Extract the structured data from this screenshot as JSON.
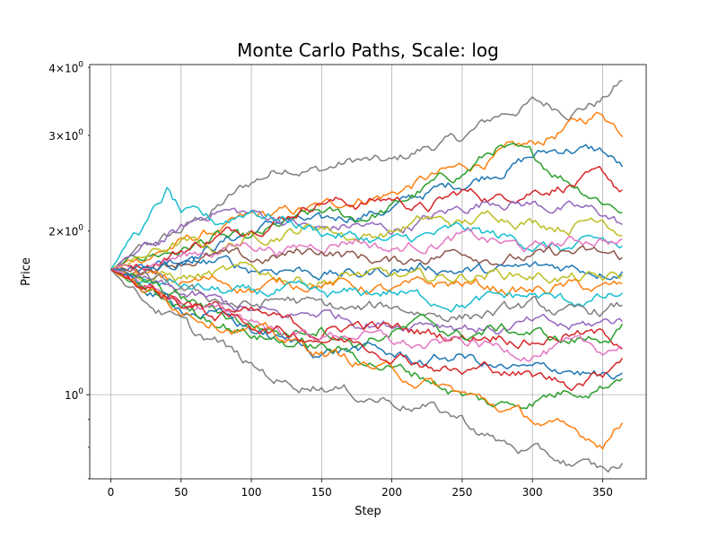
{
  "chart_data": {
    "type": "line",
    "title": "Monte Carlo Paths, Scale: log",
    "xlabel": "Step",
    "ylabel": "Price",
    "yscale": "log",
    "grid": true,
    "xlim": [
      -15,
      381
    ],
    "ylim": [
      0.7,
      4.05
    ],
    "x_ticks": [
      0,
      50,
      100,
      150,
      200,
      250,
      300,
      350
    ],
    "x_tick_labels": [
      "0",
      "50",
      "100",
      "150",
      "200",
      "250",
      "300",
      "350"
    ],
    "y_major_ticks": [
      1
    ],
    "y_major_tick_labels": [
      "10^0"
    ],
    "y_minor_ticks": [
      0.7,
      0.8,
      0.9,
      2,
      3,
      4
    ],
    "y_minor_tick_labels": [
      "",
      "",
      "",
      "2×10^0",
      "3×10^0",
      "4×10^0"
    ],
    "start_value": 1.7,
    "n_steps": 365,
    "palette": [
      "#1f77b4",
      "#ff7f0e",
      "#2ca02c",
      "#d62728",
      "#9467bd",
      "#8c564b",
      "#e377c2",
      "#7f7f7f",
      "#bcbd22",
      "#17becf"
    ],
    "series": [
      {
        "color": "#7f7f7f",
        "x": [
          0,
          25,
          50,
          75,
          100,
          125,
          150,
          175,
          200,
          225,
          250,
          275,
          300,
          325,
          350,
          365
        ],
        "values": [
          1.7,
          1.85,
          2.0,
          2.2,
          2.45,
          2.65,
          2.6,
          2.7,
          2.65,
          2.85,
          2.95,
          3.25,
          3.45,
          3.35,
          3.5,
          3.8
        ]
      },
      {
        "color": "#ff7f0e",
        "x": [
          0,
          25,
          50,
          75,
          100,
          125,
          150,
          175,
          200,
          225,
          250,
          275,
          300,
          325,
          350,
          365
        ],
        "values": [
          1.7,
          1.8,
          1.9,
          2.0,
          2.1,
          2.15,
          2.2,
          2.3,
          2.35,
          2.5,
          2.6,
          2.75,
          2.85,
          3.1,
          3.3,
          3.05
        ]
      },
      {
        "color": "#1f77b4",
        "x": [
          0,
          25,
          50,
          75,
          100,
          125,
          150,
          175,
          200,
          225,
          250,
          275,
          300,
          325,
          350,
          365
        ],
        "values": [
          1.7,
          1.75,
          1.8,
          1.9,
          2.0,
          2.1,
          2.05,
          2.15,
          2.2,
          2.35,
          2.45,
          2.6,
          2.75,
          2.85,
          2.8,
          2.6
        ]
      },
      {
        "color": "#2ca02c",
        "x": [
          0,
          25,
          50,
          75,
          100,
          125,
          150,
          175,
          200,
          225,
          250,
          275,
          300,
          325,
          350,
          365
        ],
        "values": [
          1.7,
          1.8,
          1.85,
          1.95,
          1.9,
          2.05,
          2.15,
          2.1,
          2.2,
          2.4,
          2.55,
          2.85,
          2.7,
          2.5,
          2.3,
          2.2
        ]
      },
      {
        "color": "#d62728",
        "x": [
          0,
          25,
          50,
          75,
          100,
          125,
          150,
          175,
          200,
          225,
          250,
          275,
          300,
          325,
          350,
          365
        ],
        "values": [
          1.7,
          1.75,
          1.85,
          1.95,
          2.05,
          2.15,
          2.3,
          2.25,
          2.3,
          2.2,
          2.35,
          2.3,
          2.4,
          2.45,
          2.5,
          2.35
        ]
      },
      {
        "color": "#9467bd",
        "x": [
          0,
          25,
          50,
          75,
          100,
          125,
          150,
          175,
          200,
          225,
          250,
          275,
          300,
          325,
          350,
          365
        ],
        "values": [
          1.7,
          1.85,
          2.0,
          2.2,
          2.15,
          2.1,
          2.0,
          2.05,
          2.0,
          2.1,
          2.2,
          2.3,
          2.25,
          2.2,
          2.15,
          2.05
        ]
      },
      {
        "color": "#bcbd22",
        "x": [
          0,
          25,
          50,
          75,
          100,
          125,
          150,
          175,
          200,
          225,
          250,
          275,
          300,
          325,
          350,
          365
        ],
        "values": [
          1.7,
          1.8,
          1.9,
          1.85,
          1.95,
          2.0,
          2.05,
          1.95,
          2.0,
          2.1,
          2.05,
          2.15,
          2.1,
          2.05,
          2.15,
          2.0
        ]
      },
      {
        "color": "#17becf",
        "x": [
          0,
          15,
          25,
          40,
          50,
          75,
          100,
          125,
          150,
          175,
          200,
          225,
          250,
          275,
          300,
          325,
          350,
          365
        ],
        "values": [
          1.7,
          1.95,
          2.05,
          2.35,
          2.15,
          2.05,
          2.2,
          2.1,
          2.0,
          1.95,
          1.9,
          1.95,
          2.0,
          1.95,
          1.9,
          1.85,
          1.9,
          1.85
        ]
      },
      {
        "color": "#e377c2",
        "x": [
          0,
          25,
          50,
          75,
          100,
          125,
          150,
          175,
          200,
          225,
          250,
          275,
          300,
          325,
          350,
          365
        ],
        "values": [
          1.7,
          1.75,
          1.8,
          1.85,
          1.9,
          1.85,
          1.9,
          1.95,
          1.85,
          1.9,
          1.95,
          1.9,
          1.85,
          1.9,
          1.95,
          1.9
        ]
      },
      {
        "color": "#8c564b",
        "x": [
          0,
          25,
          50,
          75,
          100,
          125,
          150,
          175,
          200,
          225,
          250,
          275,
          300,
          325,
          350,
          365
        ],
        "values": [
          1.7,
          1.72,
          1.78,
          1.8,
          1.75,
          1.8,
          1.85,
          1.8,
          1.75,
          1.8,
          1.85,
          1.8,
          1.78,
          1.82,
          1.8,
          1.78
        ]
      },
      {
        "color": "#1f77b4",
        "x": [
          0,
          25,
          50,
          75,
          100,
          125,
          150,
          175,
          200,
          225,
          250,
          275,
          300,
          325,
          350,
          365
        ],
        "values": [
          1.7,
          1.68,
          1.72,
          1.75,
          1.7,
          1.72,
          1.68,
          1.66,
          1.7,
          1.72,
          1.7,
          1.68,
          1.7,
          1.72,
          1.7,
          1.72
        ]
      },
      {
        "color": "#bcbd22",
        "x": [
          0,
          25,
          50,
          75,
          100,
          125,
          150,
          175,
          200,
          225,
          250,
          275,
          300,
          325,
          350,
          365
        ],
        "values": [
          1.7,
          1.66,
          1.64,
          1.66,
          1.68,
          1.65,
          1.63,
          1.66,
          1.64,
          1.62,
          1.65,
          1.68,
          1.66,
          1.64,
          1.62,
          1.64
        ]
      },
      {
        "color": "#ff7f0e",
        "x": [
          0,
          25,
          50,
          75,
          100,
          125,
          150,
          175,
          200,
          225,
          250,
          275,
          300,
          325,
          350,
          365
        ],
        "values": [
          1.7,
          1.65,
          1.6,
          1.62,
          1.58,
          1.6,
          1.62,
          1.58,
          1.55,
          1.58,
          1.6,
          1.57,
          1.55,
          1.58,
          1.56,
          1.58
        ]
      },
      {
        "color": "#17becf",
        "x": [
          0,
          25,
          50,
          75,
          100,
          125,
          150,
          175,
          200,
          225,
          250,
          275,
          300,
          325,
          350,
          365
        ],
        "values": [
          1.7,
          1.62,
          1.58,
          1.55,
          1.52,
          1.55,
          1.5,
          1.52,
          1.55,
          1.5,
          1.48,
          1.5,
          1.52,
          1.48,
          1.5,
          1.52
        ]
      },
      {
        "color": "#7f7f7f",
        "x": [
          0,
          25,
          50,
          75,
          100,
          125,
          150,
          175,
          200,
          225,
          250,
          275,
          300,
          325,
          350,
          365
        ],
        "values": [
          1.7,
          1.62,
          1.55,
          1.5,
          1.45,
          1.5,
          1.45,
          1.42,
          1.45,
          1.42,
          1.4,
          1.42,
          1.45,
          1.4,
          1.42,
          1.45
        ]
      },
      {
        "color": "#9467bd",
        "x": [
          0,
          25,
          50,
          75,
          100,
          125,
          150,
          175,
          200,
          225,
          250,
          275,
          300,
          325,
          350,
          365
        ],
        "values": [
          1.7,
          1.6,
          1.52,
          1.48,
          1.42,
          1.38,
          1.42,
          1.38,
          1.35,
          1.38,
          1.35,
          1.32,
          1.35,
          1.32,
          1.35,
          1.38
        ]
      },
      {
        "color": "#d62728",
        "x": [
          0,
          25,
          50,
          75,
          100,
          125,
          150,
          175,
          200,
          225,
          250,
          275,
          300,
          325,
          350,
          365
        ],
        "values": [
          1.7,
          1.6,
          1.5,
          1.45,
          1.4,
          1.35,
          1.3,
          1.35,
          1.32,
          1.3,
          1.28,
          1.3,
          1.26,
          1.3,
          1.28,
          1.25
        ]
      },
      {
        "color": "#2ca02c",
        "x": [
          0,
          25,
          50,
          75,
          100,
          125,
          150,
          175,
          200,
          225,
          250,
          275,
          300,
          325,
          350,
          365
        ],
        "values": [
          1.7,
          1.58,
          1.5,
          1.42,
          1.35,
          1.3,
          1.35,
          1.25,
          1.3,
          1.35,
          1.28,
          1.32,
          1.3,
          1.25,
          1.28,
          1.32
        ]
      },
      {
        "color": "#e377c2",
        "x": [
          0,
          25,
          50,
          75,
          100,
          125,
          150,
          175,
          200,
          225,
          250,
          275,
          300,
          325,
          350,
          365
        ],
        "values": [
          1.7,
          1.58,
          1.48,
          1.42,
          1.38,
          1.3,
          1.28,
          1.3,
          1.25,
          1.22,
          1.25,
          1.22,
          1.2,
          1.22,
          1.2,
          1.24
        ]
      },
      {
        "color": "#1f77b4",
        "x": [
          0,
          25,
          50,
          75,
          100,
          125,
          150,
          175,
          200,
          225,
          250,
          275,
          300,
          325,
          350,
          365
        ],
        "values": [
          1.7,
          1.55,
          1.45,
          1.4,
          1.32,
          1.25,
          1.2,
          1.22,
          1.18,
          1.15,
          1.18,
          1.12,
          1.1,
          1.12,
          1.08,
          1.05
        ]
      },
      {
        "color": "#2ca02c",
        "x": [
          0,
          25,
          50,
          75,
          100,
          125,
          150,
          175,
          200,
          225,
          250,
          275,
          300,
          325,
          350,
          365
        ],
        "values": [
          1.7,
          1.55,
          1.45,
          1.38,
          1.3,
          1.25,
          1.22,
          1.18,
          1.12,
          1.08,
          1.0,
          0.95,
          0.98,
          1.02,
          1.05,
          1.1
        ]
      },
      {
        "color": "#ff7f0e",
        "x": [
          0,
          25,
          50,
          75,
          100,
          125,
          150,
          175,
          200,
          225,
          250,
          275,
          300,
          325,
          350,
          365
        ],
        "values": [
          1.7,
          1.55,
          1.45,
          1.38,
          1.32,
          1.25,
          1.2,
          1.15,
          1.1,
          1.05,
          1.0,
          0.95,
          0.9,
          0.85,
          0.82,
          0.9
        ]
      },
      {
        "color": "#7f7f7f",
        "x": [
          0,
          25,
          50,
          60,
          75,
          100,
          125,
          150,
          175,
          200,
          225,
          250,
          275,
          300,
          325,
          350,
          365
        ],
        "values": [
          1.7,
          1.5,
          1.35,
          1.28,
          1.25,
          1.12,
          1.05,
          1.05,
          1.0,
          0.98,
          0.95,
          0.9,
          0.82,
          0.78,
          0.75,
          0.72,
          0.74
        ]
      },
      {
        "color": "#d62728",
        "x": [
          0,
          25,
          50,
          75,
          100,
          125,
          150,
          175,
          200,
          225,
          250,
          275,
          300,
          325,
          350,
          365
        ],
        "values": [
          1.7,
          1.58,
          1.48,
          1.4,
          1.35,
          1.3,
          1.28,
          1.25,
          1.2,
          1.15,
          1.1,
          1.12,
          1.08,
          1.05,
          1.1,
          1.2
        ]
      }
    ]
  }
}
